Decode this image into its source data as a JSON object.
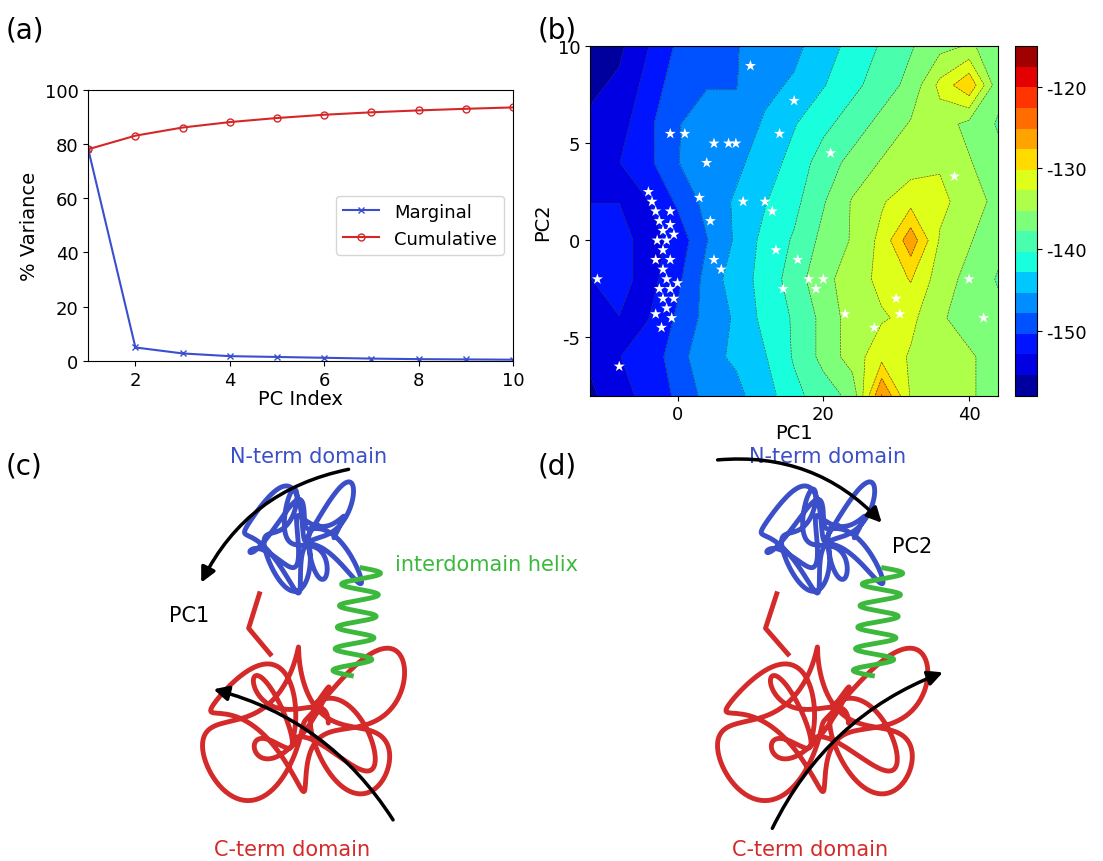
{
  "chart_data": [
    {
      "panel": "(a)",
      "type": "line",
      "xlabel": "PC Index",
      "ylabel": "% Variance",
      "x": [
        1,
        2,
        3,
        4,
        5,
        6,
        7,
        8,
        9,
        10
      ],
      "series": [
        {
          "name": "Marginal",
          "color": "#3a4fd0",
          "marker": "x",
          "line_style": "solid",
          "values": [
            78,
            5,
            2.8,
            1.8,
            1.5,
            1.2,
            0.9,
            0.7,
            0.6,
            0.5
          ]
        },
        {
          "name": "Cumulative",
          "color": "#d62728",
          "marker": "circle",
          "line_style": "solid",
          "values": [
            78,
            83,
            86,
            88,
            89.5,
            90.7,
            91.6,
            92.3,
            92.9,
            93.4
          ]
        }
      ],
      "xlim": [
        1,
        10
      ],
      "xticks": [
        2,
        4,
        6,
        8,
        10
      ],
      "ylim": [
        0,
        100
      ],
      "yticks": [
        0,
        20,
        40,
        60,
        80,
        100
      ],
      "legend": "center right",
      "grid": false
    },
    {
      "panel": "(b)",
      "type": "contour",
      "xlabel": "PC1",
      "ylabel": "PC2",
      "x": [
        -12,
        -8,
        -4,
        0,
        4,
        8,
        12,
        16,
        20,
        24,
        28,
        32,
        36,
        40,
        44
      ],
      "y": [
        -8,
        -6,
        -4,
        -2,
        0,
        2,
        4,
        6,
        8,
        10
      ],
      "cells": [
        [
          -156,
          -154,
          -152,
          -150,
          -147,
          -146,
          -144,
          -141,
          -139,
          -137,
          -125,
          -133,
          -134,
          -135,
          -136
        ],
        [
          -155,
          -153,
          -152,
          -149,
          -146,
          -145,
          -143,
          -140,
          -137,
          -134,
          -131,
          -133,
          -134,
          -135,
          -136
        ],
        [
          -154,
          -153,
          -153,
          -150,
          -147,
          -145,
          -142,
          -140,
          -137,
          -134,
          -133,
          -132,
          -135,
          -136,
          -137
        ],
        [
          -153,
          -152,
          -154,
          -151,
          -147,
          -144,
          -142,
          -139,
          -136,
          -134,
          -132,
          -130,
          -134,
          -136,
          -138
        ],
        [
          -152,
          -152,
          -154,
          -152,
          -148,
          -145,
          -142,
          -140,
          -137,
          -135,
          -132,
          -126,
          -133,
          -135,
          -137
        ],
        [
          -153,
          -153,
          -153,
          -150,
          -147,
          -145,
          -143,
          -141,
          -138,
          -135,
          -133,
          -131,
          -132,
          -134,
          -136
        ],
        [
          -154,
          -153,
          -151,
          -148,
          -146,
          -146,
          -144,
          -142,
          -139,
          -137,
          -135,
          -134,
          -133,
          -135,
          -137
        ],
        [
          -155,
          -154,
          -151,
          -148,
          -147,
          -147,
          -145,
          -143,
          -141,
          -139,
          -137,
          -135,
          -134,
          -136,
          -138
        ],
        [
          -156,
          -155,
          -152,
          -149,
          -148,
          -148,
          -146,
          -145,
          -143,
          -141,
          -139,
          -137,
          -132,
          -128,
          -137
        ],
        [
          -157,
          -156,
          -153,
          -150,
          -149,
          -148,
          -147,
          -146,
          -144,
          -142,
          -140,
          -138,
          -136,
          -135,
          -136
        ]
      ],
      "colorbar_range": [
        -158,
        -115
      ],
      "colorbar_ticks": [
        -150,
        -140,
        -130,
        -120
      ],
      "points": {
        "color": "white",
        "marker": "star",
        "x": [
          -3,
          -2.5,
          -2,
          -1.5,
          -2,
          -1,
          -2,
          -1.5,
          -1,
          -2,
          -1.5,
          -0.5,
          0,
          -3,
          -2.5,
          -1,
          -3.5,
          -4,
          -0.8,
          -2.2,
          -3,
          -1,
          -0.5,
          -2.8,
          -11,
          -8,
          -1,
          1,
          3,
          4,
          4.5,
          5,
          5,
          6,
          7,
          8,
          9,
          10,
          12,
          13,
          14,
          13.5,
          14.5,
          16,
          16.5,
          18,
          19,
          20,
          21,
          23,
          27,
          30,
          30.5,
          38,
          40,
          42
        ],
        "y": [
          1.5,
          1,
          0.5,
          0,
          -0.5,
          -1,
          -1.5,
          -2,
          -2.5,
          -3,
          -3.5,
          -3,
          -2.2,
          -1,
          -2.5,
          0.8,
          2,
          2.5,
          -4,
          -4.5,
          -3.8,
          1.5,
          0.3,
          0,
          -2,
          -6.5,
          5.5,
          5.5,
          2.2,
          4,
          1,
          5,
          -1,
          -1.5,
          5,
          5,
          2,
          9,
          2,
          1.5,
          5.5,
          -0.5,
          -2.5,
          7.2,
          -1,
          -2,
          -2.5,
          -2,
          4.5,
          -3.8,
          -4.5,
          -3,
          -3.8,
          3.3,
          -2,
          -4
        ]
      },
      "xlim": [
        -12,
        44
      ],
      "xticks": [
        0,
        20,
        40
      ],
      "ylim": [
        -8,
        10
      ],
      "yticks": [
        -5,
        0,
        5,
        10
      ]
    }
  ],
  "diagrams": [
    {
      "panel": "(c)",
      "arrow_label": "PC1",
      "texts": [
        {
          "text": "N-term domain",
          "color": "#3b4fc8"
        },
        {
          "text": "interdomain helix",
          "color": "#3cb83c"
        },
        {
          "text": "C-term domain",
          "color": "#d42a2a"
        }
      ]
    },
    {
      "panel": "(d)",
      "arrow_label": "PC2",
      "texts": [
        {
          "text": "N-term domain",
          "color": "#3b4fc8"
        },
        {
          "text": "C-term domain",
          "color": "#d42a2a"
        }
      ]
    }
  ]
}
